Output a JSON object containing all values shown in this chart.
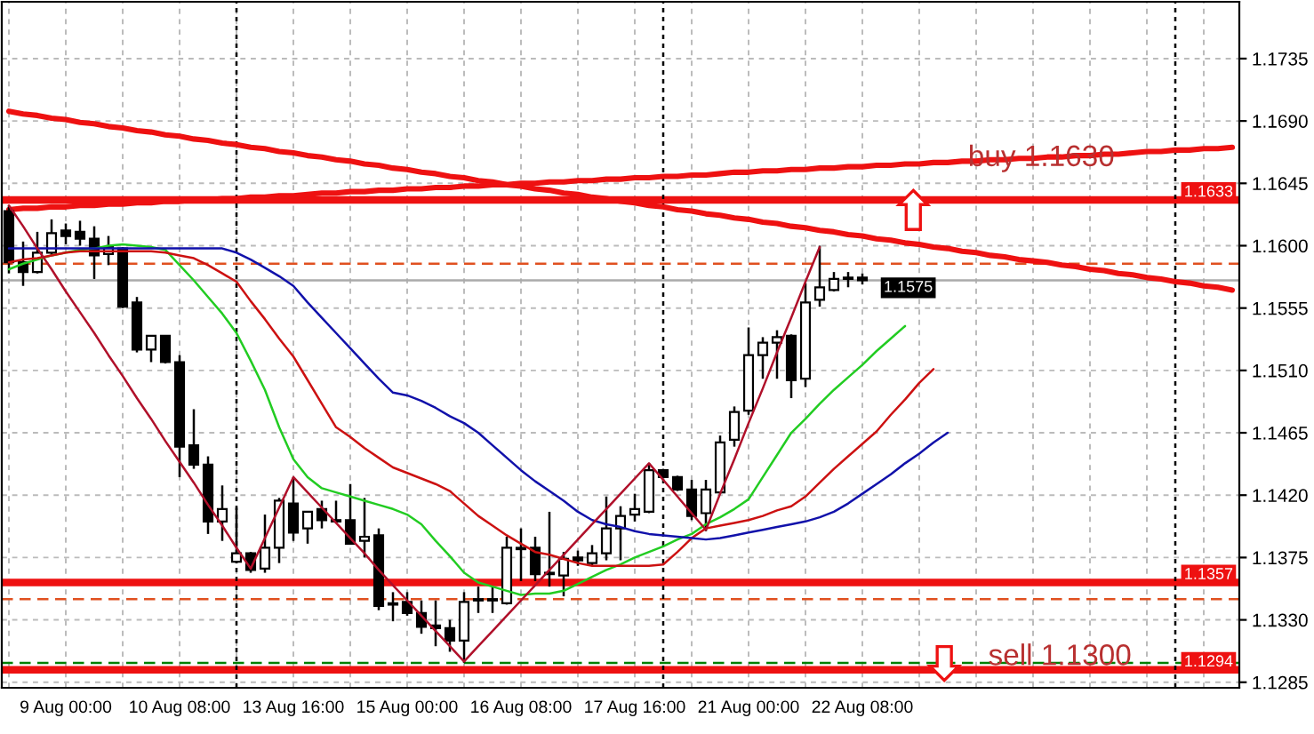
{
  "chart_data": {
    "type": "candlestick",
    "categories": [
      null,
      null,
      null,
      null,
      "9 Aug 00:00",
      null,
      null,
      null,
      null,
      null,
      null,
      null,
      "10 Aug 08:00",
      null,
      null,
      null,
      null,
      null,
      null,
      null,
      "13 Aug 16:00",
      null,
      null,
      null,
      null,
      null,
      null,
      null,
      "15 Aug 00:00",
      null,
      null,
      null,
      null,
      null,
      null,
      null,
      "16 Aug 08:00",
      null,
      null,
      null,
      null,
      null,
      null,
      null,
      "17 Aug 16:00",
      null,
      null,
      null,
      null,
      null,
      null,
      null,
      "21 Aug 00:00",
      null,
      null,
      null,
      null,
      null,
      null,
      null,
      "22 Aug 08:00",
      null,
      null,
      null,
      null,
      null,
      null,
      null,
      null,
      null,
      null,
      null,
      null,
      null,
      null,
      null,
      null,
      null,
      null,
      null,
      null,
      null,
      null,
      null,
      null,
      null,
      null
    ],
    "ohlc": [
      [
        1.1625,
        1.1629,
        1.158,
        1.1588
      ],
      [
        1.1588,
        1.1603,
        1.1571,
        1.1581
      ],
      [
        1.1581,
        1.161,
        1.158,
        1.1595
      ],
      [
        1.1595,
        1.1619,
        1.1593,
        1.1609
      ],
      [
        1.1611,
        1.1616,
        1.1601,
        1.1607
      ],
      [
        1.161,
        1.1618,
        1.16,
        1.1605
      ],
      [
        1.1605,
        1.1614,
        1.1576,
        1.1593
      ],
      [
        1.1594,
        1.1607,
        1.1586,
        1.1599
      ],
      [
        1.1598,
        1.1599,
        1.1555,
        1.1556
      ],
      [
        1.1559,
        1.1563,
        1.1523,
        1.1525
      ],
      [
        1.1525,
        1.1535,
        1.1516,
        1.1535
      ],
      [
        1.1535,
        1.1535,
        1.1515,
        1.1516
      ],
      [
        1.1516,
        1.1521,
        1.1433,
        1.1455
      ],
      [
        1.1456,
        1.1482,
        1.1439,
        1.1442
      ],
      [
        1.1442,
        1.1448,
        1.1392,
        1.1401
      ],
      [
        1.1401,
        1.1427,
        1.1387,
        1.141
      ],
      [
        1.1372,
        1.1411,
        1.1371,
        1.1378
      ],
      [
        1.1378,
        1.1379,
        1.1364,
        1.1366
      ],
      [
        1.1367,
        1.1406,
        1.1364,
        1.1382
      ],
      [
        1.1382,
        1.1418,
        1.1371,
        1.1416
      ],
      [
        1.1414,
        1.1433,
        1.1387,
        1.1393
      ],
      [
        1.1396,
        1.1408,
        1.1385,
        1.1408
      ],
      [
        1.141,
        1.1416,
        1.1396,
        1.1402
      ],
      [
        1.1402,
        1.1416,
        1.14,
        1.1401
      ],
      [
        1.1402,
        1.1428,
        1.1385,
        1.1385
      ],
      [
        1.1387,
        1.1418,
        1.1375,
        1.139
      ],
      [
        1.1391,
        1.1396,
        1.1337,
        1.134
      ],
      [
        1.1342,
        1.135,
        1.1329,
        1.1341
      ],
      [
        1.1343,
        1.135,
        1.1333,
        1.1335
      ],
      [
        1.1335,
        1.1344,
        1.132,
        1.1325
      ],
      [
        1.1326,
        1.1344,
        1.1311,
        1.1324
      ],
      [
        1.1324,
        1.133,
        1.1307,
        1.1315
      ],
      [
        1.1315,
        1.135,
        1.1299,
        1.1343
      ],
      [
        1.1344,
        1.1354,
        1.1335,
        1.1345
      ],
      [
        1.1345,
        1.1354,
        1.1335,
        1.1344
      ],
      [
        1.1342,
        1.139,
        1.1341,
        1.1382
      ],
      [
        1.1382,
        1.1396,
        1.1358,
        1.1381
      ],
      [
        1.1382,
        1.139,
        1.1358,
        1.1363
      ],
      [
        1.1363,
        1.1408,
        1.1354,
        1.1364
      ],
      [
        1.1362,
        1.1379,
        1.1347,
        1.1374
      ],
      [
        1.1375,
        1.138,
        1.1369,
        1.1373
      ],
      [
        1.1371,
        1.1384,
        1.1369,
        1.1378
      ],
      [
        1.1378,
        1.1419,
        1.1373,
        1.1396
      ],
      [
        1.1396,
        1.1412,
        1.1373,
        1.1405
      ],
      [
        1.1406,
        1.1421,
        1.1401,
        1.141
      ],
      [
        1.1408,
        1.1443,
        1.1407,
        1.1438
      ],
      [
        1.1438,
        1.1439,
        1.1432,
        1.1433
      ],
      [
        1.1433,
        1.1434,
        1.1423,
        1.1424
      ],
      [
        1.1424,
        1.1431,
        1.1402,
        1.1405
      ],
      [
        1.1407,
        1.1431,
        1.1394,
        1.1424
      ],
      [
        1.1422,
        1.1463,
        1.1421,
        1.1458
      ],
      [
        1.146,
        1.1484,
        1.1455,
        1.148
      ],
      [
        1.1481,
        1.1541,
        1.1478,
        1.1521
      ],
      [
        1.1521,
        1.1534,
        1.1504,
        1.153
      ],
      [
        1.153,
        1.1539,
        1.1504,
        1.1534
      ],
      [
        1.1535,
        1.1536,
        1.149,
        1.1503
      ],
      [
        1.1504,
        1.1573,
        1.1498,
        1.1559
      ],
      [
        1.1561,
        1.16,
        1.1556,
        1.157
      ],
      [
        1.1568,
        1.1581,
        1.1567,
        1.1576
      ],
      [
        1.1576,
        1.1581,
        1.157,
        1.1577
      ],
      [
        1.1577,
        1.158,
        1.1572,
        1.1575
      ],
      null,
      null,
      null,
      null,
      null,
      null,
      null,
      null,
      null,
      null,
      null,
      null,
      null,
      null,
      null,
      null,
      null,
      null,
      null,
      null,
      null,
      null,
      null,
      null,
      null,
      null
    ],
    "series": [
      {
        "type": "line",
        "color": "#22cc22",
        "values": [
          1.1583,
          1.1587,
          1.159,
          1.1593,
          1.1595,
          1.1597,
          1.1598,
          1.16,
          1.1601,
          1.16,
          1.1599,
          1.1597,
          1.1586,
          1.1575,
          1.1563,
          1.1551,
          1.1537,
          1.1517,
          1.1496,
          1.1469,
          1.1446,
          1.1433,
          1.1425,
          1.1422,
          1.1419,
          1.1416,
          1.1413,
          1.141,
          1.1406,
          1.1399,
          1.1387,
          1.1376,
          1.1364,
          1.1357,
          1.1354,
          1.1351,
          1.1348,
          1.1349,
          1.1349,
          1.1351,
          1.1356,
          1.1361,
          1.1366,
          1.137,
          1.1375,
          1.1379,
          1.1383,
          1.1388,
          1.1392,
          1.1399,
          1.1404,
          1.141,
          1.1417,
          1.1433,
          1.1449,
          1.1465,
          1.1475,
          1.1486,
          1.1496,
          1.1505,
          1.1514,
          1.1524,
          1.1533,
          1.1542,
          null,
          null,
          null,
          null,
          null,
          null,
          null,
          null,
          null,
          null,
          null,
          null,
          null,
          null,
          null,
          null,
          null,
          null,
          null,
          null,
          null,
          null,
          null
        ]
      },
      {
        "type": "line",
        "color": "#cc1111",
        "values": [
          1.1588,
          1.159,
          1.1591,
          1.1593,
          1.1595,
          1.1596,
          1.1596,
          1.1596,
          1.1596,
          1.1596,
          1.1596,
          1.1595,
          1.1593,
          1.1591,
          1.1586,
          1.158,
          1.1574,
          1.156,
          1.1547,
          1.1533,
          1.152,
          1.1503,
          1.1486,
          1.1469,
          1.1462,
          1.1454,
          1.1447,
          1.144,
          1.1436,
          1.1432,
          1.1428,
          1.1423,
          1.1414,
          1.1405,
          1.1398,
          1.1391,
          1.1385,
          1.1379,
          1.1377,
          1.1374,
          1.1371,
          1.1369,
          1.1369,
          1.1369,
          1.1369,
          1.1369,
          1.137,
          1.1379,
          1.1389,
          1.1396,
          1.1398,
          1.14,
          1.1402,
          1.1405,
          1.1409,
          1.1412,
          1.1419,
          1.1429,
          1.1439,
          1.1448,
          1.1457,
          1.1466,
          1.1478,
          1.1489,
          1.1501,
          1.1511,
          null,
          null,
          null,
          null,
          null,
          null,
          null,
          null,
          null,
          null,
          null,
          null,
          null,
          null,
          null,
          null,
          null,
          null,
          null,
          null,
          null
        ]
      },
      {
        "type": "line",
        "color": "#1111aa",
        "values": [
          1.1598,
          1.1598,
          1.1598,
          1.1598,
          1.1598,
          1.1598,
          1.1598,
          1.1598,
          1.1598,
          1.1598,
          1.1598,
          1.1598,
          1.1598,
          1.1598,
          1.1598,
          1.1598,
          1.1595,
          1.159,
          1.1584,
          1.1578,
          1.1571,
          1.1559,
          1.1548,
          1.1537,
          1.1526,
          1.1515,
          1.1504,
          1.1494,
          1.1492,
          1.1488,
          1.1483,
          1.1477,
          1.1472,
          1.1465,
          1.1456,
          1.1447,
          1.1438,
          1.143,
          1.1423,
          1.1416,
          1.1408,
          1.1402,
          1.1399,
          1.1397,
          1.1394,
          1.1392,
          1.1391,
          1.139,
          1.1389,
          1.1388,
          1.1389,
          1.1391,
          1.1393,
          1.1395,
          1.1397,
          1.1399,
          1.1401,
          1.1404,
          1.1408,
          1.1414,
          1.1421,
          1.1428,
          1.1435,
          1.1443,
          1.145,
          1.1458,
          1.1465,
          null,
          null,
          null,
          null,
          null,
          null,
          null,
          null,
          null,
          null,
          null,
          null,
          null,
          null,
          null,
          null,
          null,
          null,
          null,
          null
        ]
      },
      {
        "type": "line",
        "color": "#b0102a",
        "values": [
          1.1629,
          1.1614,
          1.1598,
          1.1583,
          1.1567,
          1.1552,
          1.1537,
          1.1521,
          1.1506,
          1.149,
          1.1475,
          1.1459,
          1.1444,
          1.1429,
          1.1413,
          1.1398,
          1.1382,
          1.1367,
          1.1389,
          1.1411,
          1.1433,
          1.1422,
          1.1411,
          1.14,
          1.1389,
          1.1378,
          1.1366,
          1.1355,
          1.1344,
          1.1333,
          1.1322,
          1.1311,
          1.13,
          1.1311,
          1.1322,
          1.1333,
          1.1344,
          1.1355,
          1.1366,
          1.1377,
          1.1388,
          1.1399,
          1.141,
          1.1421,
          1.1432,
          1.1443,
          1.1431,
          1.1419,
          1.1407,
          1.1395,
          1.1421,
          1.1446,
          1.1472,
          1.1497,
          1.1523,
          1.1548,
          1.1574,
          1.1599,
          null,
          null,
          null,
          null,
          null,
          null,
          null,
          null,
          null,
          null,
          null,
          null,
          null,
          null,
          null,
          null,
          null,
          null,
          null,
          null,
          null,
          null,
          null,
          null,
          null,
          null,
          null,
          null,
          null
        ]
      },
      {
        "type": "line",
        "color": "#ee1111",
        "values": [
          1.1697,
          1.1695,
          1.1694,
          1.1692,
          1.1691,
          1.1689,
          1.1688,
          1.1686,
          1.1685,
          1.1683,
          1.1682,
          1.168,
          1.1679,
          1.1677,
          1.1676,
          1.1674,
          1.1673,
          1.1671,
          1.167,
          1.1668,
          1.1667,
          1.1665,
          1.1664,
          1.1662,
          1.1661,
          1.1659,
          1.1658,
          1.1656,
          1.1655,
          1.1653,
          1.1652,
          1.165,
          1.1649,
          1.1647,
          1.1646,
          1.1644,
          1.1643,
          1.1641,
          1.164,
          1.1638,
          1.1637,
          1.1635,
          1.1634,
          1.1632,
          1.1631,
          1.1629,
          1.1628,
          1.1626,
          1.1625,
          1.1623,
          1.1622,
          1.162,
          1.1619,
          1.1617,
          1.1616,
          1.1614,
          1.1613,
          1.1611,
          1.161,
          1.1608,
          1.1607,
          1.1605,
          1.1604,
          1.1602,
          1.1601,
          1.1599,
          1.1598,
          1.1596,
          1.1595,
          1.1593,
          1.1592,
          1.159,
          1.1589,
          1.1588,
          1.1586,
          1.1585,
          1.1583,
          1.1582,
          1.158,
          1.1579,
          1.1577,
          1.1576,
          1.1574,
          1.1573,
          1.1571,
          1.157,
          1.1568
        ]
      },
      {
        "type": "line",
        "color": "#ee1111",
        "values": [
          1.1626,
          1.1627,
          1.1627,
          1.1628,
          1.1628,
          1.1629,
          1.1629,
          1.163,
          1.163,
          1.1631,
          1.1631,
          1.1632,
          1.1632,
          1.1633,
          1.1633,
          1.1634,
          1.1634,
          1.1635,
          1.1635,
          1.1636,
          1.1636,
          1.1637,
          1.1638,
          1.1638,
          1.1639,
          1.1639,
          1.164,
          1.164,
          1.1641,
          1.1641,
          1.1642,
          1.1642,
          1.1643,
          1.1643,
          1.1644,
          1.1644,
          1.1645,
          1.1645,
          1.1646,
          1.1646,
          1.1647,
          1.1647,
          1.1648,
          1.1648,
          1.1649,
          1.1649,
          1.165,
          1.165,
          1.1651,
          1.1651,
          1.1652,
          1.1653,
          1.1653,
          1.1654,
          1.1654,
          1.1655,
          1.1655,
          1.1656,
          1.1656,
          1.1657,
          1.1657,
          1.1658,
          1.1658,
          1.1659,
          1.1659,
          1.166,
          1.166,
          1.1661,
          1.1661,
          1.1662,
          1.1662,
          1.1663,
          1.1663,
          1.1664,
          1.1664,
          1.1665,
          1.1665,
          1.1666,
          1.1666,
          1.1667,
          1.1668,
          1.1668,
          1.1669,
          1.1669,
          1.167,
          1.167,
          1.1671
        ]
      }
    ],
    "ylim": [
      1.1281,
      1.1776
    ],
    "yticks": [
      1.1735,
      {
        "value": 1.169,
        "label": "1.1690"
      },
      1.1645,
      {
        "value": 1.16,
        "label": "1.1600"
      },
      1.1555,
      {
        "value": 1.151,
        "label": "1.1510"
      },
      1.1465,
      {
        "value": 1.142,
        "label": "1.1420"
      },
      1.1375,
      {
        "value": 1.133,
        "label": "1.1330"
      },
      1.1285
    ],
    "ref_lines": [
      {
        "axis": "y",
        "value": 1.1633,
        "label": "1.1633",
        "color": "#ee1111",
        "line_style": "solid"
      },
      {
        "axis": "y",
        "value": 1.1575,
        "label": "1.1575",
        "color": "#aaaaaa",
        "line_style": "solid"
      },
      {
        "axis": "y",
        "value": 1.1357,
        "label": "1.1357",
        "color": "#ee1111",
        "line_style": "solid"
      },
      {
        "axis": "y",
        "value": 1.1294,
        "label": "1.1294",
        "color": "#ee1111",
        "line_style": "solid"
      },
      {
        "axis": "y",
        "value": 1.1587,
        "color": "#e05020",
        "line_style": "dashed"
      },
      {
        "axis": "y",
        "value": 1.1345,
        "color": "#e05020",
        "line_style": "dashed"
      },
      {
        "axis": "y",
        "value": 1.1299,
        "color": "#008000",
        "line_style": "dashed"
      }
    ],
    "annotations": [
      {
        "text": "buy 1.1630",
        "y": 1.1663
      },
      {
        "text": "sell 1.1300",
        "y": 1.1303
      }
    ],
    "grid": true
  }
}
